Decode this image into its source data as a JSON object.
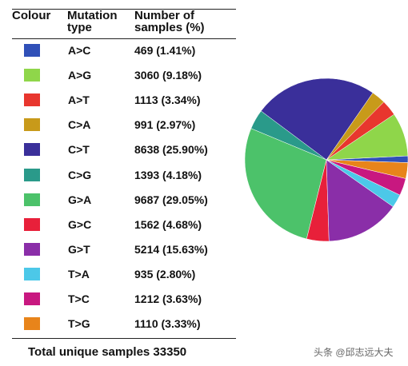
{
  "table": {
    "header": [
      "Colour",
      "Mutation type",
      "Number of samples (%)"
    ],
    "rows": [
      [
        "A>C",
        "469 (1.41%)"
      ],
      [
        "A>G",
        "3060 (9.18%)"
      ],
      [
        "A>T",
        "1113 (3.34%)"
      ],
      [
        "C>A",
        "991 (2.97%)"
      ],
      [
        "C>T",
        "8638 (25.90%)"
      ],
      [
        "C>G",
        "1393 (4.18%)"
      ],
      [
        "G>A",
        "9687 (29.05%)"
      ],
      [
        "G>C",
        "1562 (4.68%)"
      ],
      [
        "G>T",
        "5214 (15.63%)"
      ],
      [
        "T>A",
        "935 (2.80%)"
      ],
      [
        "T>C",
        "1212 (3.63%)"
      ],
      [
        "T>G",
        "1110 (3.33%)"
      ]
    ],
    "footer": "Total unique samples 33350"
  },
  "chart_data": {
    "type": "pie",
    "values": [
      1.41,
      9.18,
      3.34,
      2.97,
      25.9,
      4.18,
      29.05,
      4.68,
      15.63,
      2.8,
      3.63,
      3.33
    ],
    "colors": [
      "#3050b8",
      "#8fd64a",
      "#e8362e",
      "#c89a1a",
      "#3a2f9a",
      "#2a9a8a",
      "#4cc26a",
      "#e8203a",
      "#8a2ea8",
      "#4cc8e8",
      "#c81880",
      "#e8841a"
    ]
  },
  "watermark": "头条 @邱志远大夫"
}
